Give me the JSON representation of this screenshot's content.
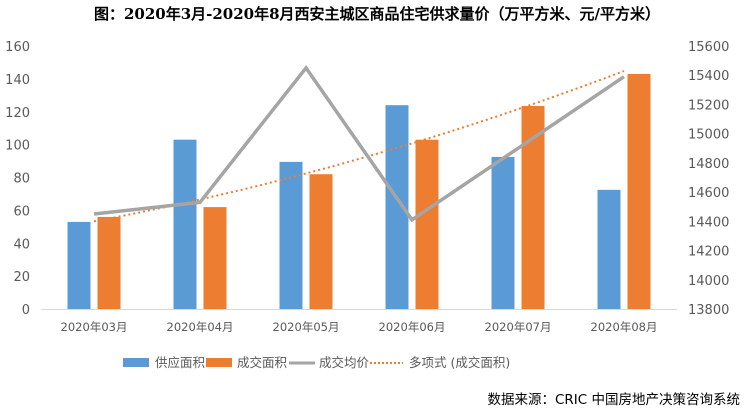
{
  "chart_data": {
    "type": "bar",
    "title": "图：2020年3月-2020年8月西安主城区商品住宅供求量价（万平方米、元/平方米）",
    "categories": [
      "2020年03月",
      "2020年04月",
      "2020年05月",
      "2020年06月",
      "2020年07月",
      "2020年08月"
    ],
    "series": [
      {
        "name": "供应面积",
        "type": "bar",
        "axis": "left",
        "color": "#5B9BD5",
        "values": [
          53,
          103,
          89.5,
          124,
          92.5,
          72.5
        ]
      },
      {
        "name": "成交面积",
        "type": "bar",
        "axis": "left",
        "color": "#ED7D31",
        "values": [
          56,
          62,
          82,
          103,
          123.5,
          143
        ]
      },
      {
        "name": "成交均价",
        "type": "line",
        "axis": "right",
        "color": "#A5A5A5",
        "values": [
          14450,
          14530,
          15450,
          14410,
          14900,
          15390
        ]
      },
      {
        "name": "多项式 (成交面积)",
        "type": "trendline-polynomial",
        "axis": "left",
        "of": "成交面积",
        "color": "#ED7D31",
        "style": "dotted"
      }
    ],
    "y_left": {
      "min": 0,
      "max": 160,
      "step": 20,
      "ticks": [
        "0",
        "20",
        "40",
        "60",
        "80",
        "100",
        "120",
        "140",
        "160"
      ]
    },
    "y_right": {
      "min": 13800,
      "max": 15600,
      "step": 200,
      "ticks": [
        "13800",
        "14000",
        "14200",
        "14400",
        "14600",
        "14800",
        "15000",
        "15200",
        "15400",
        "15600"
      ]
    },
    "grid": false,
    "legend_position": "bottom",
    "source": "数据来源：CRIC 中国房地产决策咨询系统"
  }
}
